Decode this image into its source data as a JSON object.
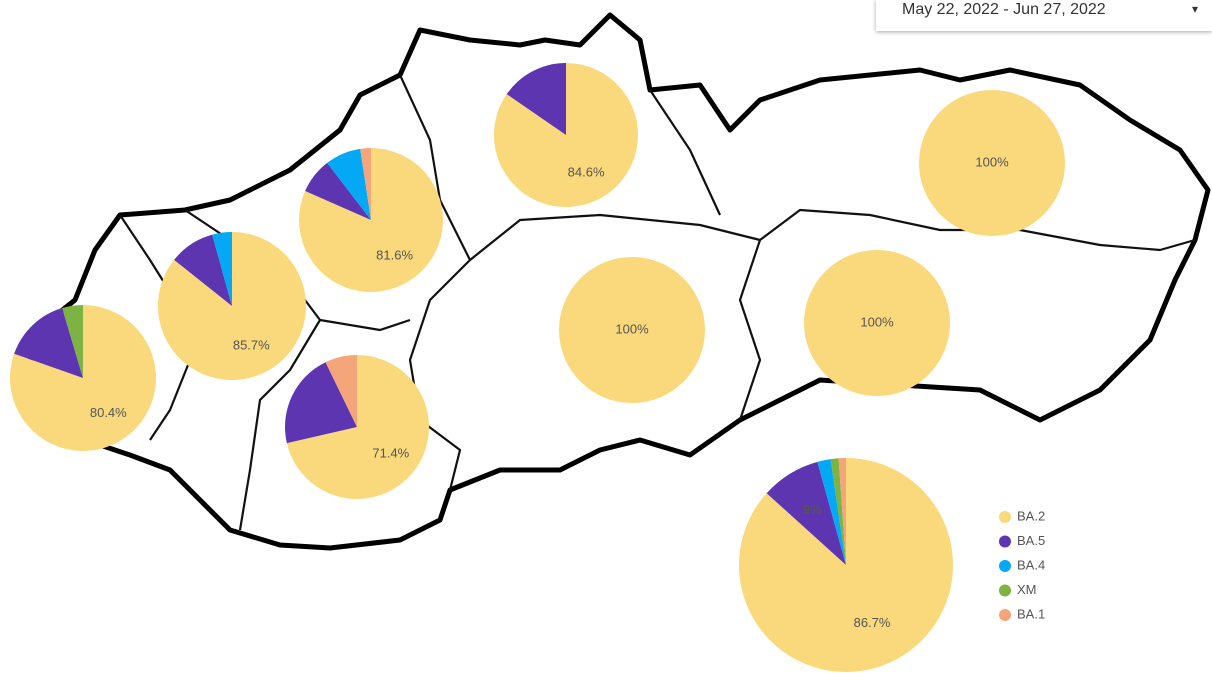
{
  "date_range": "May 22, 2022 - Jun 27, 2022",
  "legend": [
    {
      "name": "BA.2",
      "color": "#f9d97c"
    },
    {
      "name": "BA.5",
      "color": "#5e35b1"
    },
    {
      "name": "BA.4",
      "color": "#03a9f4"
    },
    {
      "name": "XM",
      "color": "#7cb342"
    },
    {
      "name": "BA.1",
      "color": "#f4a57a"
    }
  ],
  "pies": [
    {
      "values": [
        80.4,
        15,
        0,
        4.6,
        0
      ],
      "value_labels": [
        "80.4%",
        null,
        null,
        null,
        null
      ]
    },
    {
      "values": [
        85.7,
        10,
        4.3,
        0,
        0
      ],
      "value_labels": [
        "85.7%",
        null,
        null,
        null,
        null
      ]
    },
    {
      "values": [
        81.6,
        8,
        8,
        0,
        2.4
      ],
      "value_labels": [
        "81.6%",
        null,
        null,
        null,
        null
      ]
    },
    {
      "values": [
        84.6,
        15.4,
        0,
        0,
        0
      ],
      "value_labels": [
        "84.6%",
        null,
        null,
        null,
        null
      ]
    },
    {
      "values": [
        71.4,
        21.4,
        0,
        0,
        7.2
      ],
      "value_labels": [
        "71.4%",
        null,
        null,
        null,
        null
      ]
    },
    {
      "values": [
        100,
        0,
        0,
        0,
        0
      ],
      "value_labels": [
        "100%",
        null,
        null,
        null,
        null
      ]
    },
    {
      "values": [
        100,
        0,
        0,
        0,
        0
      ],
      "value_labels": [
        "100%",
        null,
        null,
        null,
        null
      ]
    },
    {
      "values": [
        100,
        0,
        0,
        0,
        0
      ],
      "value_labels": [
        "100%",
        null,
        null,
        null,
        null
      ]
    },
    {
      "values": [
        86.7,
        9,
        2,
        1.2,
        1.1
      ],
      "value_labels": [
        "86.7%",
        "9%",
        null,
        null,
        null
      ]
    }
  ]
}
